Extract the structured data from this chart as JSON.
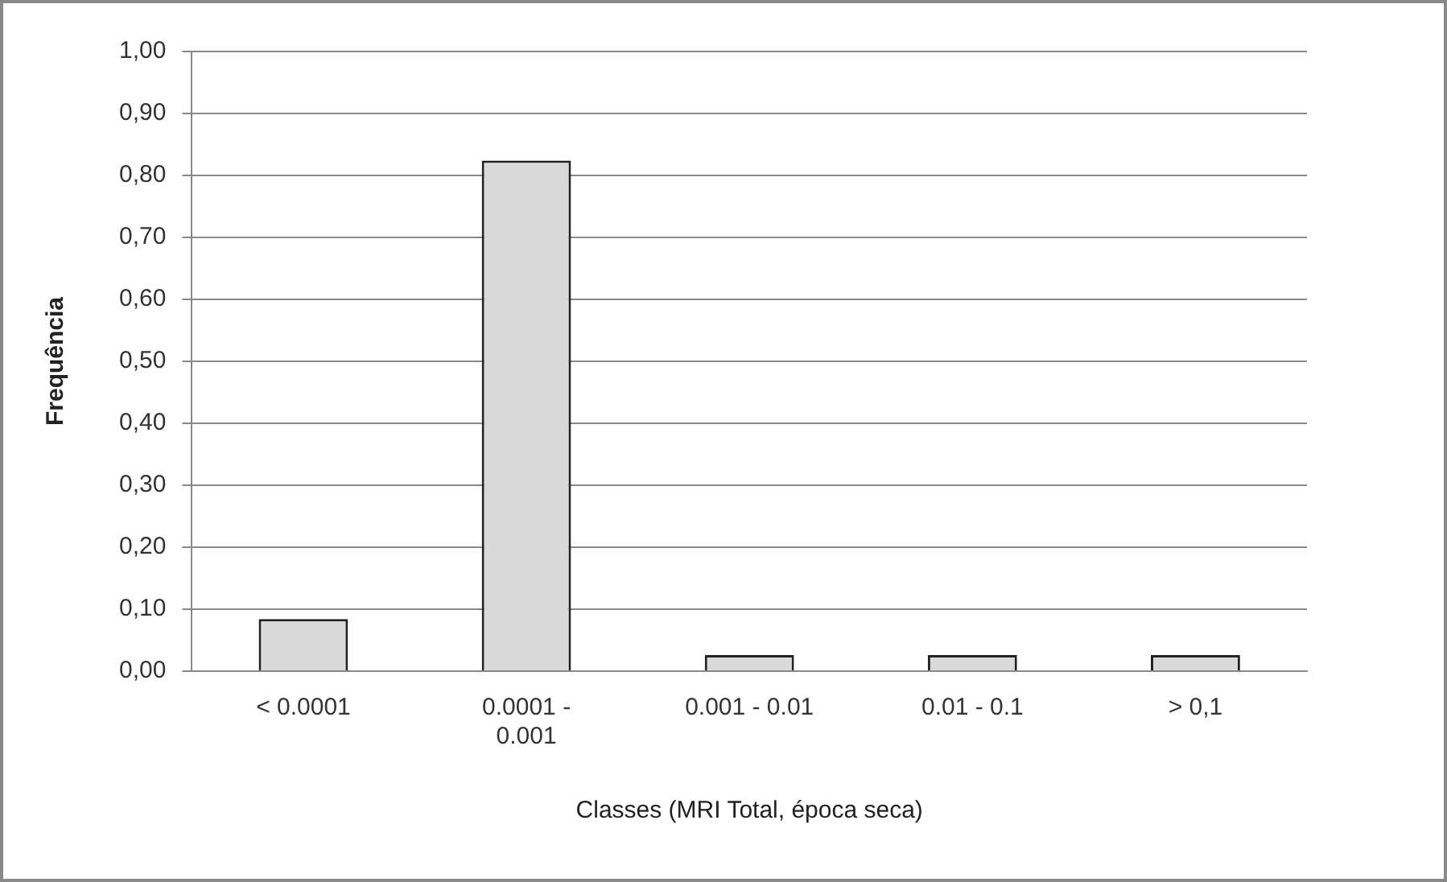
{
  "chart_data": {
    "type": "bar",
    "xlabel": "Classes (MRI Total, época seca)",
    "ylabel": "Frequência",
    "categories": [
      "< 0.0001",
      "0.0001 - 0.001",
      "0.001 - 0.01",
      "0.01 - 0.1",
      "> 0,1"
    ],
    "values": [
      0.084,
      0.824,
      0.026,
      0.026,
      0.026
    ],
    "color": "#d9d9d9",
    "ylim": [
      0,
      1
    ],
    "yticks": [
      {
        "value": 0,
        "label": "0,00"
      },
      {
        "value": 0.1,
        "label": "0,10"
      },
      {
        "value": 0.2,
        "label": "0,20"
      },
      {
        "value": 0.3,
        "label": "0,30"
      },
      {
        "value": 0.4,
        "label": "0,40"
      },
      {
        "value": 0.5,
        "label": "0,50"
      },
      {
        "value": 0.6,
        "label": "0,60"
      },
      {
        "value": 0.7,
        "label": "0,70"
      },
      {
        "value": 0.8,
        "label": "0,80"
      },
      {
        "value": 0.9,
        "label": "0,90"
      },
      {
        "value": 1,
        "label": "1,00"
      }
    ],
    "grid": "y",
    "legend": false
  }
}
